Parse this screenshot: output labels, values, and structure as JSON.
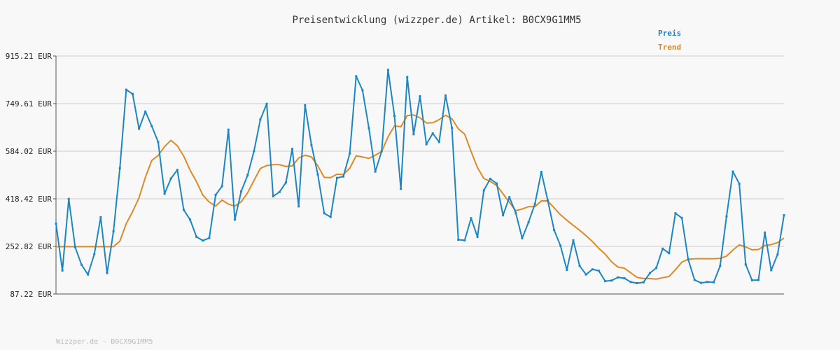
{
  "chart_data": {
    "type": "line",
    "title": "Preisentwicklung (wizzper.de) Artikel: B0CX9G1MM5",
    "xlabel": "",
    "ylabel": "",
    "y_ticks": [
      "87.22 EUR",
      "252.82 EUR",
      "418.42 EUR",
      "584.02 EUR",
      "749.61 EUR",
      "915.21 EUR"
    ],
    "ylim": [
      87.22,
      915.21
    ],
    "grid": true,
    "legend_position": "top-right",
    "colors": {
      "price": "#1c86c4",
      "trend": "#de8a26"
    },
    "series": [
      {
        "name": "Preis",
        "values": [
          332,
          169,
          418,
          250,
          189,
          155,
          226,
          354,
          160,
          305,
          525,
          798,
          783,
          662,
          722,
          671,
          616,
          436,
          489,
          519,
          380,
          346,
          286,
          273,
          282,
          432,
          462,
          659,
          346,
          444,
          500,
          584,
          694,
          749,
          427,
          442,
          475,
          592,
          392,
          744,
          606,
          503,
          368,
          355,
          491,
          496,
          576,
          845,
          796,
          664,
          513,
          584,
          867,
          707,
          453,
          842,
          643,
          775,
          608,
          646,
          616,
          778,
          665,
          276,
          274,
          351,
          286,
          448,
          488,
          472,
          361,
          424,
          369,
          281,
          337,
          401,
          512,
          413,
          310,
          255,
          171,
          274,
          185,
          155,
          173,
          168,
          132,
          134,
          145,
          142,
          129,
          125,
          128,
          160,
          178,
          245,
          229,
          368,
          352,
          207,
          136,
          126,
          129,
          128,
          185,
          357,
          513,
          471,
          190,
          135,
          136,
          301,
          170,
          225,
          361
        ],
        "x_range": [
          0,
          114
        ]
      },
      {
        "name": "Trend",
        "values": [
          252,
          252,
          252,
          252,
          252,
          252,
          252,
          252,
          252,
          252,
          271,
          332,
          374,
          422,
          493,
          552,
          569,
          600,
          622,
          603,
          567,
          518,
          478,
          431,
          407,
          393,
          414,
          400,
          393,
          408,
          439,
          482,
          524,
          534,
          537,
          537,
          531,
          533,
          560,
          570,
          564,
          533,
          493,
          492,
          504,
          503,
          525,
          568,
          564,
          559,
          570,
          583,
          634,
          672,
          669,
          708,
          710,
          700,
          682,
          683,
          694,
          709,
          697,
          662,
          643,
          583,
          527,
          489,
          479,
          465,
          436,
          406,
          377,
          383,
          391,
          391,
          411,
          411,
          387,
          363,
          344,
          326,
          309,
          290,
          270,
          246,
          226,
          199,
          181,
          177,
          161,
          145,
          141,
          141,
          139,
          144,
          148,
          172,
          198,
          208,
          210,
          210,
          210,
          210,
          211,
          219,
          240,
          258,
          251,
          241,
          242,
          256,
          259,
          266,
          282
        ],
        "x_range": [
          0,
          114
        ]
      }
    ]
  },
  "footer": {
    "text": "Wizzper.de - B0CX9G1MM5"
  }
}
